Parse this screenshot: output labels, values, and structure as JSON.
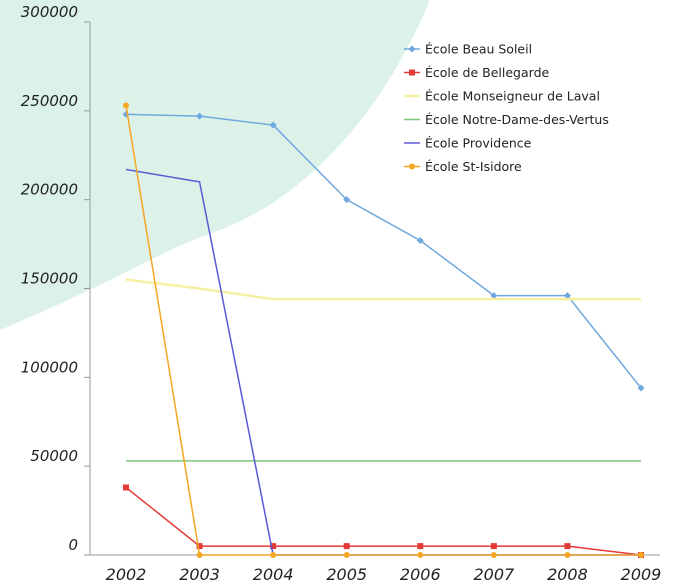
{
  "chart_data": {
    "type": "line",
    "x": [
      "2002",
      "2003",
      "2004",
      "2005",
      "2006",
      "2007",
      "2008",
      "2009"
    ],
    "ylim": [
      0,
      300000
    ],
    "yticks": [
      "0",
      "50000",
      "100000",
      "150000",
      "200000",
      "250000",
      "300000"
    ],
    "ytick_values": [
      0,
      50000,
      100000,
      150000,
      200000,
      250000,
      300000
    ],
    "grid": false,
    "legend_position": "top-right",
    "series": [
      {
        "name": "École Beau Soleil",
        "color": "#6fa8dc",
        "marker": "diamond",
        "values": [
          248000,
          247000,
          242000,
          200000,
          177000,
          146000,
          146000,
          94000
        ]
      },
      {
        "name": "École de Bellegarde",
        "color": "#e53935",
        "marker": "square",
        "values": [
          38000,
          5000,
          5000,
          5000,
          5000,
          5000,
          5000,
          0
        ]
      },
      {
        "name": "École Monseigneur de Laval",
        "color": "#f5f0a0",
        "marker": "none",
        "values": [
          155000,
          150000,
          144000,
          144000,
          144000,
          144000,
          144000,
          144000
        ]
      },
      {
        "name": "École Notre-Dame-des-Vertus",
        "color": "#7cc47c",
        "marker": "none",
        "values": [
          53000,
          53000,
          53000,
          53000,
          53000,
          53000,
          53000,
          53000
        ]
      },
      {
        "name": "École Providence",
        "color": "#5a5ad6",
        "marker": "none",
        "values": [
          217000,
          210000,
          0,
          0,
          0,
          0,
          0,
          0
        ]
      },
      {
        "name": "École St-Isidore",
        "color": "#f5a623",
        "marker": "circle",
        "values": [
          253000,
          0,
          0,
          0,
          0,
          0,
          0,
          0
        ]
      }
    ]
  }
}
